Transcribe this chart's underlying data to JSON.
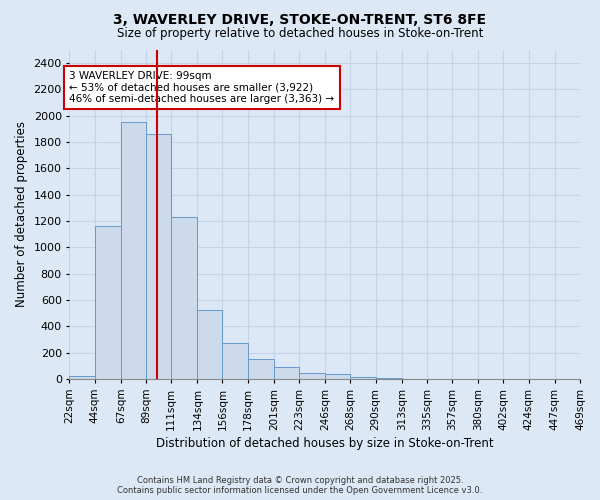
{
  "title": "3, WAVERLEY DRIVE, STOKE-ON-TRENT, ST6 8FE",
  "subtitle": "Size of property relative to detached houses in Stoke-on-Trent",
  "xlabel": "Distribution of detached houses by size in Stoke-on-Trent",
  "ylabel": "Number of detached properties",
  "bar_values": [
    25,
    1160,
    1950,
    1860,
    1230,
    520,
    275,
    150,
    90,
    45,
    40,
    15,
    5,
    3,
    2,
    1,
    1,
    1,
    1,
    1
  ],
  "bin_edges": [
    22,
    44,
    67,
    89,
    111,
    134,
    156,
    178,
    201,
    223,
    246,
    268,
    290,
    313,
    335,
    357,
    380,
    402,
    424,
    447,
    469
  ],
  "bin_labels": [
    "22sqm",
    "44sqm",
    "67sqm",
    "89sqm",
    "111sqm",
    "134sqm",
    "156sqm",
    "178sqm",
    "201sqm",
    "223sqm",
    "246sqm",
    "268sqm",
    "290sqm",
    "313sqm",
    "335sqm",
    "357sqm",
    "380sqm",
    "402sqm",
    "424sqm",
    "447sqm",
    "469sqm"
  ],
  "bar_color": "#ccdaeb",
  "bar_edge_color": "#6699cc",
  "grid_color": "#c5d5e8",
  "background_color": "#dce8f5",
  "vline_position": 3.78,
  "vline_color": "#cc0000",
  "annotation_text": "3 WAVERLEY DRIVE: 99sqm\n← 53% of detached houses are smaller (3,922)\n46% of semi-detached houses are larger (3,363) →",
  "annotation_box_color": "#ffffff",
  "annotation_box_edge": "#cc0000",
  "ylim": [
    0,
    2500
  ],
  "yticks": [
    0,
    200,
    400,
    600,
    800,
    1000,
    1200,
    1400,
    1600,
    1800,
    2000,
    2200,
    2400
  ],
  "footer_line1": "Contains HM Land Registry data © Crown copyright and database right 2025.",
  "footer_line2": "Contains public sector information licensed under the Open Government Licence v3.0."
}
